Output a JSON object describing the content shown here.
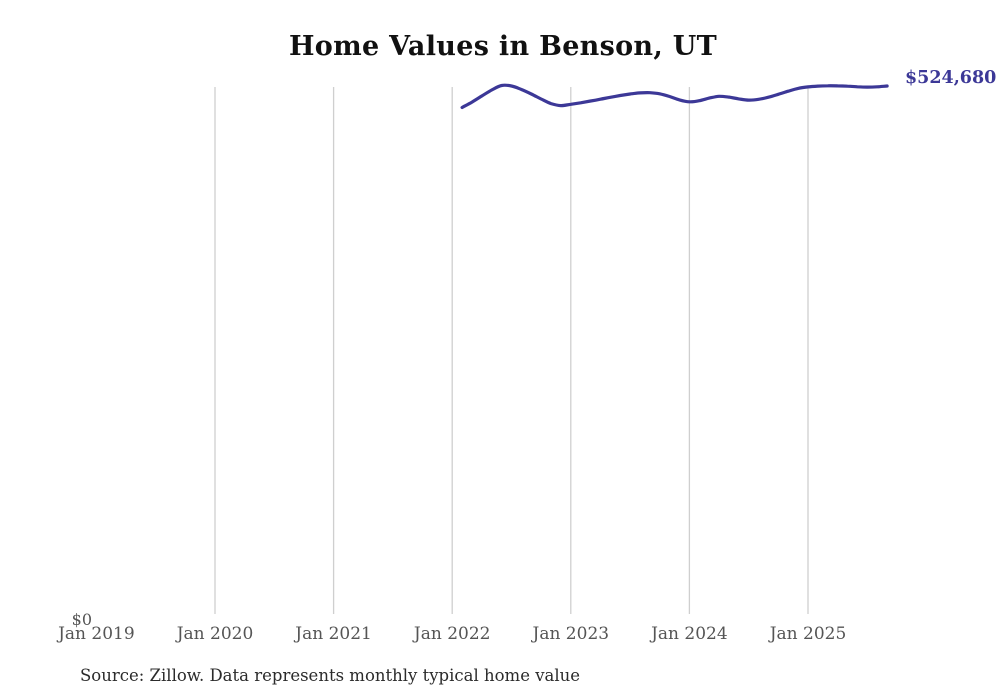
{
  "title": "Home Values in Benson, UT",
  "annotations": {
    "end_value_label": "$524,680",
    "y_zero_label": "$0"
  },
  "source_note": "Source: Zillow. Data represents monthly typical home value",
  "colors": {
    "line": "#3c3897",
    "end_label": "#3c3897",
    "gridline": "#cfcfcf",
    "tick_label": "#555555",
    "title": "#111111",
    "source": "#2b2b2b",
    "background": "#ffffff"
  },
  "chart_data": {
    "type": "line",
    "title": "Home Values in Benson, UT",
    "xlabel": "",
    "ylabel": "",
    "x_tick_labels": [
      "Jan 2019",
      "Jan 2020",
      "Jan 2021",
      "Jan 2022",
      "Jan 2023",
      "Jan 2024",
      "Jan 2025"
    ],
    "gridline_years": [
      2020,
      2021,
      2022,
      2023,
      2024,
      2025
    ],
    "grid": "vertical-only",
    "legend": "none",
    "ylim": [
      0,
      527000
    ],
    "x_range": [
      "2019-01",
      "2025-09"
    ],
    "end_value": 524680,
    "end_label": "$524,680",
    "series": [
      {
        "name": "Monthly typical home value",
        "x": [
          "2022-02",
          "2022-03",
          "2022-04",
          "2022-05",
          "2022-06",
          "2022-07",
          "2022-08",
          "2022-09",
          "2022-10",
          "2022-11",
          "2022-12",
          "2023-01",
          "2023-02",
          "2023-03",
          "2023-04",
          "2023-05",
          "2023-06",
          "2023-07",
          "2023-08",
          "2023-09",
          "2023-10",
          "2023-11",
          "2023-12",
          "2024-01",
          "2024-02",
          "2024-03",
          "2024-04",
          "2024-05",
          "2024-06",
          "2024-07",
          "2024-08",
          "2024-09",
          "2024-10",
          "2024-11",
          "2024-12",
          "2025-01",
          "2025-02",
          "2025-03",
          "2025-04",
          "2025-05",
          "2025-06",
          "2025-07",
          "2025-08",
          "2025-09"
        ],
        "values": [
          503300,
          508700,
          514700,
          520700,
          525200,
          524700,
          521200,
          516700,
          511700,
          507200,
          505200,
          506500,
          508000,
          509700,
          511500,
          513400,
          515200,
          516700,
          517800,
          518000,
          516900,
          514200,
          510800,
          508900,
          510000,
          512600,
          514400,
          513600,
          511800,
          510600,
          511400,
          513500,
          516400,
          519500,
          522300,
          523800,
          524600,
          524900,
          524800,
          524500,
          523900,
          523600,
          523900,
          524680
        ]
      }
    ]
  }
}
